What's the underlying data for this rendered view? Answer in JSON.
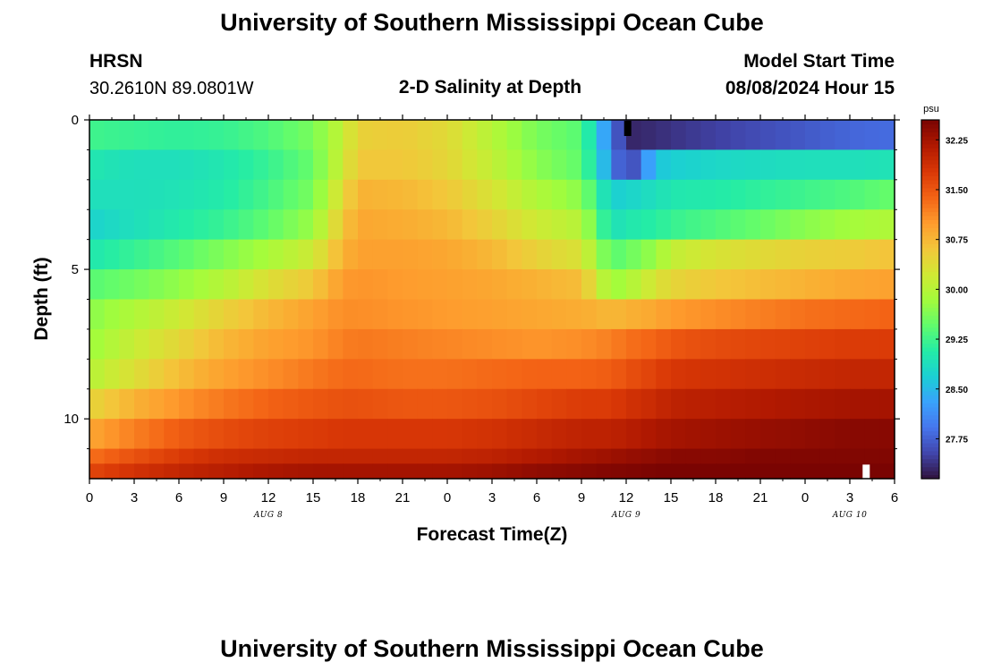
{
  "header": {
    "title": "University of Southern Mississippi Ocean Cube",
    "station": "HRSN",
    "coords": "30.2610N  89.0801W",
    "plot_title": "2-D Salinity at Depth",
    "model_label": "Model Start Time",
    "model_time": "08/08/2024 Hour 15"
  },
  "footer": {
    "title": "University of Southern Mississippi Ocean Cube"
  },
  "colors": {
    "scale": [
      "#30123b",
      "#4145ab",
      "#4675ed",
      "#39a2fc",
      "#1bcfd4",
      "#24eca6",
      "#61fc6c",
      "#a4fc3b",
      "#d1e834",
      "#f3c63a",
      "#fe9b2d",
      "#f36315",
      "#d93806",
      "#b11901",
      "#7a0402"
    ]
  },
  "chart_data": {
    "type": "heatmap",
    "title": "2-D Salinity at Depth",
    "xlabel": "Forecast Time(Z)",
    "ylabel": "Depth (ft)",
    "x_unit": "hours since 00Z Aug 8",
    "xlim": [
      0,
      54
    ],
    "ylim": [
      0,
      12
    ],
    "y_ticks": [
      0,
      5,
      10
    ],
    "y_tick_labels": [
      "0",
      "5",
      "10"
    ],
    "y_minor_ticks": [
      1,
      2,
      3,
      4,
      6,
      7,
      8,
      9,
      11
    ],
    "x_ticks": [
      0,
      3,
      6,
      9,
      12,
      15,
      18,
      21,
      24,
      27,
      30,
      33,
      36,
      39,
      42,
      45,
      48,
      51,
      54
    ],
    "x_tick_labels": [
      "0",
      "3",
      "6",
      "9",
      "12",
      "15",
      "18",
      "21",
      "0",
      "3",
      "6",
      "9",
      "12",
      "15",
      "18",
      "21",
      "0",
      "3",
      "6"
    ],
    "date_labels": [
      {
        "x": 12,
        "text": "AUG 8"
      },
      {
        "x": 36,
        "text": "AUG 9"
      },
      {
        "x": 51,
        "text": "AUG 10"
      }
    ],
    "colorbar": {
      "unit": "psu",
      "vmin": 27.15,
      "vmax": 32.55,
      "ticks": [
        27.75,
        28.5,
        29.25,
        30.0,
        30.75,
        31.5,
        32.25
      ],
      "tick_labels": [
        "27.75",
        "28.50",
        "29.25",
        "30.00",
        "30.75",
        "31.50",
        "32.25"
      ]
    },
    "depth_bins": [
      [
        0,
        1
      ],
      [
        1,
        2
      ],
      [
        2,
        3
      ],
      [
        3,
        4
      ],
      [
        4,
        5
      ],
      [
        5,
        6
      ],
      [
        6,
        7
      ],
      [
        7,
        8
      ],
      [
        8,
        9
      ],
      [
        9,
        10
      ],
      [
        10,
        11
      ],
      [
        11,
        11.5
      ],
      [
        11.5,
        12
      ]
    ],
    "time_hours": [
      0,
      3,
      6,
      9,
      12,
      15,
      17,
      18,
      21,
      24,
      27,
      30,
      33,
      35,
      36,
      38,
      39,
      42,
      45,
      48,
      51,
      54
    ],
    "salinity": [
      [
        29.25,
        29.2,
        29.15,
        29.2,
        29.35,
        29.6,
        30.1,
        30.5,
        30.55,
        30.4,
        30.0,
        29.6,
        29.4,
        28.0,
        27.3,
        27.35,
        27.4,
        27.5,
        27.6,
        27.7,
        27.8,
        27.85
      ],
      [
        29.0,
        28.9,
        28.9,
        29.0,
        29.2,
        29.5,
        30.2,
        30.6,
        30.6,
        30.45,
        30.1,
        29.7,
        29.45,
        28.2,
        27.35,
        28.6,
        28.7,
        28.8,
        28.85,
        28.9,
        28.9,
        28.95
      ],
      [
        28.9,
        28.9,
        28.95,
        29.05,
        29.3,
        29.6,
        30.4,
        30.8,
        30.75,
        30.6,
        30.3,
        29.95,
        29.7,
        28.7,
        28.75,
        28.9,
        29.0,
        29.05,
        29.15,
        29.25,
        29.35,
        29.5
      ],
      [
        28.75,
        28.9,
        29.05,
        29.2,
        29.45,
        29.8,
        30.6,
        30.9,
        30.85,
        30.75,
        30.5,
        30.2,
        30.0,
        28.9,
        29.0,
        29.1,
        29.2,
        29.35,
        29.5,
        29.7,
        29.85,
        29.95
      ],
      [
        29.0,
        29.2,
        29.4,
        29.65,
        29.9,
        30.2,
        30.8,
        30.95,
        30.95,
        30.9,
        30.75,
        30.5,
        30.3,
        29.4,
        29.5,
        29.8,
        30.1,
        30.3,
        30.4,
        30.5,
        30.55,
        30.65
      ],
      [
        29.4,
        29.55,
        29.75,
        30.0,
        30.35,
        30.6,
        31.0,
        31.05,
        31.0,
        30.95,
        30.9,
        30.8,
        30.7,
        29.8,
        29.9,
        30.3,
        30.45,
        30.6,
        30.7,
        30.8,
        30.9,
        30.95
      ],
      [
        29.7,
        29.95,
        30.2,
        30.5,
        30.75,
        30.95,
        31.1,
        31.1,
        31.05,
        31.0,
        30.95,
        30.9,
        30.85,
        30.75,
        30.8,
        30.9,
        31.0,
        31.1,
        31.2,
        31.3,
        31.35,
        31.4
      ],
      [
        29.8,
        30.15,
        30.45,
        30.75,
        30.95,
        31.05,
        31.2,
        31.25,
        31.2,
        31.15,
        31.1,
        31.05,
        31.1,
        31.2,
        31.3,
        31.4,
        31.5,
        31.6,
        31.65,
        31.7,
        31.75,
        31.75
      ],
      [
        30.0,
        30.35,
        30.7,
        30.95,
        31.1,
        31.25,
        31.35,
        31.35,
        31.3,
        31.3,
        31.35,
        31.4,
        31.4,
        31.45,
        31.55,
        31.7,
        31.8,
        31.85,
        31.9,
        31.95,
        32.0,
        32.0
      ],
      [
        30.45,
        30.8,
        31.05,
        31.25,
        31.4,
        31.5,
        31.55,
        31.55,
        31.5,
        31.5,
        31.55,
        31.65,
        31.75,
        31.75,
        31.85,
        31.95,
        32.05,
        32.1,
        32.15,
        32.2,
        32.25,
        32.25
      ],
      [
        30.9,
        31.2,
        31.45,
        31.6,
        31.7,
        31.75,
        31.8,
        31.8,
        31.8,
        31.8,
        31.85,
        31.95,
        32.05,
        32.05,
        32.1,
        32.2,
        32.25,
        32.3,
        32.35,
        32.4,
        32.45,
        32.45
      ],
      [
        31.3,
        31.55,
        31.75,
        31.9,
        31.95,
        32.0,
        32.0,
        32.0,
        32.0,
        32.0,
        32.05,
        32.15,
        32.25,
        32.3,
        32.35,
        32.4,
        32.45,
        32.45,
        32.5,
        32.5,
        32.5,
        32.5
      ],
      [
        31.65,
        31.85,
        32.0,
        32.1,
        32.2,
        32.25,
        32.25,
        32.25,
        32.25,
        32.25,
        32.3,
        32.4,
        32.45,
        32.5,
        32.5,
        32.55,
        32.55,
        32.55,
        32.55,
        32.55,
        32.55,
        32.55
      ]
    ],
    "markers": [
      {
        "x": 36.1,
        "depth": 0.3,
        "color": "#000000"
      },
      {
        "x": 52.1,
        "depth": 11.8,
        "color": "#ffffff"
      }
    ]
  }
}
